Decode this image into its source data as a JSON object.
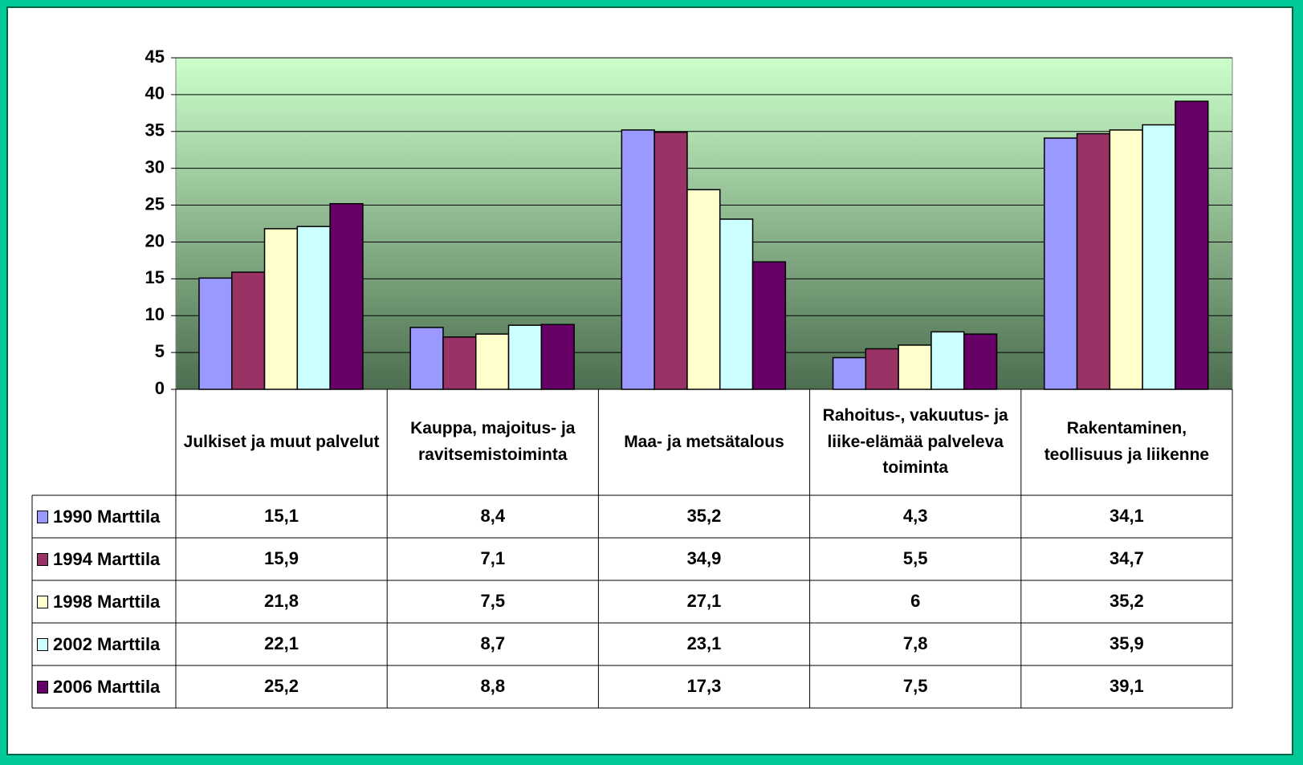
{
  "chart_data": {
    "type": "bar",
    "categories": [
      "Julkiset ja muut palvelut",
      "Kauppa, majoitus- ja ravitsemistoiminta",
      "Maa- ja metsätalous",
      "Rahoitus-, vakuutus- ja liike-elämää palveleva toiminta",
      "Rakentaminen, teollisuus ja liikenne"
    ],
    "series": [
      {
        "name": "1990 Marttila",
        "color": "#9999ff",
        "values": [
          15.1,
          8.4,
          35.2,
          4.3,
          34.1
        ],
        "value_labels": [
          "15,1",
          "8,4",
          "35,2",
          "4,3",
          "34,1"
        ]
      },
      {
        "name": "1994 Marttila",
        "color": "#993366",
        "values": [
          15.9,
          7.1,
          34.9,
          5.5,
          34.7
        ],
        "value_labels": [
          "15,9",
          "7,1",
          "34,9",
          "5,5",
          "34,7"
        ]
      },
      {
        "name": "1998 Marttila",
        "color": "#ffffcc",
        "values": [
          21.8,
          7.5,
          27.1,
          6,
          35.2
        ],
        "value_labels": [
          "21,8",
          "7,5",
          "27,1",
          "6",
          "35,2"
        ]
      },
      {
        "name": "2002 Marttila",
        "color": "#ccffff",
        "values": [
          22.1,
          8.7,
          23.1,
          7.8,
          35.9
        ],
        "value_labels": [
          "22,1",
          "8,7",
          "23,1",
          "7,8",
          "35,9"
        ]
      },
      {
        "name": "2006 Marttila",
        "color": "#660066",
        "values": [
          25.2,
          8.8,
          17.3,
          7.5,
          39.1
        ],
        "value_labels": [
          "25,2",
          "8,8",
          "17,3",
          "7,5",
          "39,1"
        ]
      }
    ],
    "ylim": [
      0,
      45
    ],
    "yticks": [
      0,
      5,
      10,
      15,
      20,
      25,
      30,
      35,
      40,
      45
    ],
    "grid": true
  }
}
